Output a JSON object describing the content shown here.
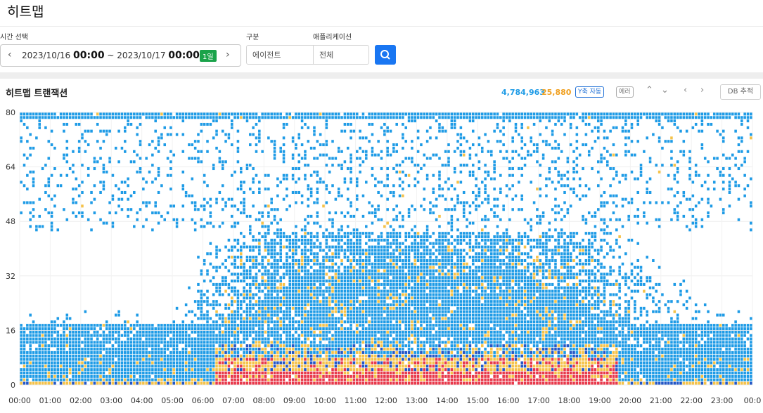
{
  "page": {
    "title": "히트맵"
  },
  "filters": {
    "time_label": "시간 선택",
    "start_date": "2023/10/16",
    "start_time": "00:00",
    "separator": "~",
    "end_date": "2023/10/17",
    "end_time": "00:00",
    "duration_badge": "1일",
    "category_label": "구분",
    "category_value": "에이전트",
    "app_label": "애플리케이션",
    "app_value": "전체"
  },
  "heatmap": {
    "title": "히트맵 트랜잭션",
    "total_count": "4,784,963",
    "error_count": "25,880",
    "y_auto_label": "Y축 자동",
    "error_label": "에러",
    "db_trace_label": "DB 추적"
  },
  "colors": {
    "low": "#1e9be6",
    "mid": "#f5c249",
    "high": "#e8394b",
    "dark": "#2457c5",
    "search": "#1976f2",
    "badge": "#1aa34a"
  },
  "chart_data": {
    "type": "heatmap",
    "title": "히트맵 트랜잭션",
    "ylim": [
      0,
      80
    ],
    "y_ticks": [
      "0",
      "16",
      "32",
      "48",
      "64",
      "80"
    ],
    "x_ticks": [
      "00:00",
      "01:00",
      "02:00",
      "03:00",
      "04:00",
      "05:00",
      "06:00",
      "07:00",
      "08:00",
      "09:00",
      "10:00",
      "11:00",
      "12:00",
      "13:00",
      "14:00",
      "15:00",
      "16:00",
      "17:00",
      "18:00",
      "19:00",
      "20:00",
      "21:00",
      "22:00",
      "23:00",
      "00:0"
    ],
    "grid": true,
    "legend": "none",
    "density_profile": {
      "hours": [
        0,
        1,
        2,
        3,
        4,
        5,
        6,
        7,
        8,
        9,
        10,
        11,
        12,
        13,
        14,
        15,
        16,
        17,
        18,
        19,
        20,
        21,
        22,
        23,
        24
      ],
      "activity": [
        0.3,
        0.32,
        0.3,
        0.32,
        0.3,
        0.3,
        0.55,
        0.7,
        0.8,
        0.85,
        0.85,
        0.88,
        0.9,
        0.9,
        0.9,
        0.88,
        0.88,
        0.85,
        0.8,
        0.65,
        0.55,
        0.45,
        0.38,
        0.32,
        0.3
      ]
    }
  }
}
